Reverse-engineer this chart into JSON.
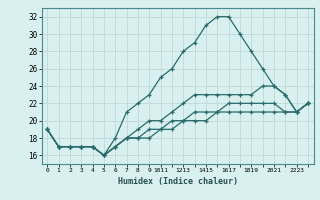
{
  "xlabel": "Humidex (Indice chaleur)",
  "ylabel": "",
  "bg_color": "#d8f0f0",
  "grid_color": "#c0d8d8",
  "line_color": "#2a6b6b",
  "ylim": [
    15,
    33
  ],
  "xlim": [
    -0.5,
    23.5
  ],
  "yticks": [
    16,
    18,
    20,
    22,
    24,
    26,
    28,
    30,
    32
  ],
  "xticks": [
    0,
    1,
    2,
    3,
    4,
    5,
    6,
    7,
    8,
    9,
    10,
    11,
    12,
    13,
    14,
    15,
    16,
    17,
    18,
    19,
    20,
    21,
    22,
    23
  ],
  "xticklabels": [
    "0",
    "1",
    "2",
    "3",
    "4",
    "5",
    "6",
    "7",
    "8",
    "9",
    "1011",
    "1213",
    "1415",
    "1617",
    "1819",
    "2021",
    "2223",
    "",
    "",
    "",
    "",
    "",
    "",
    ""
  ],
  "series": [
    {
      "x": [
        0,
        1,
        2,
        3,
        4,
        5,
        6,
        7,
        8,
        9,
        10,
        11,
        12,
        13,
        14,
        15,
        16,
        17,
        18,
        19,
        20,
        21,
        22,
        23
      ],
      "y": [
        19,
        17,
        17,
        17,
        17,
        16,
        18,
        21,
        22,
        23,
        25,
        26,
        28,
        29,
        31,
        32,
        32,
        30,
        28,
        26,
        24,
        23,
        21,
        22
      ]
    },
    {
      "x": [
        0,
        1,
        2,
        3,
        4,
        5,
        6,
        7,
        8,
        9,
        10,
        11,
        12,
        13,
        14,
        15,
        16,
        17,
        18,
        19,
        20,
        21,
        22,
        23
      ],
      "y": [
        19,
        17,
        17,
        17,
        17,
        16,
        17,
        18,
        19,
        20,
        20,
        21,
        22,
        23,
        23,
        23,
        23,
        23,
        23,
        24,
        24,
        23,
        21,
        22
      ]
    },
    {
      "x": [
        0,
        1,
        2,
        3,
        4,
        5,
        6,
        7,
        8,
        9,
        10,
        11,
        12,
        13,
        14,
        15,
        16,
        17,
        18,
        19,
        20,
        21,
        22,
        23
      ],
      "y": [
        19,
        17,
        17,
        17,
        17,
        16,
        17,
        18,
        18,
        19,
        19,
        20,
        20,
        21,
        21,
        21,
        22,
        22,
        22,
        22,
        22,
        21,
        21,
        22
      ]
    },
    {
      "x": [
        0,
        1,
        2,
        3,
        4,
        5,
        6,
        7,
        8,
        9,
        10,
        11,
        12,
        13,
        14,
        15,
        16,
        17,
        18,
        19,
        20,
        21,
        22,
        23
      ],
      "y": [
        19,
        17,
        17,
        17,
        17,
        16,
        17,
        18,
        18,
        18,
        19,
        19,
        20,
        20,
        20,
        21,
        21,
        21,
        21,
        21,
        21,
        21,
        21,
        22
      ]
    }
  ]
}
